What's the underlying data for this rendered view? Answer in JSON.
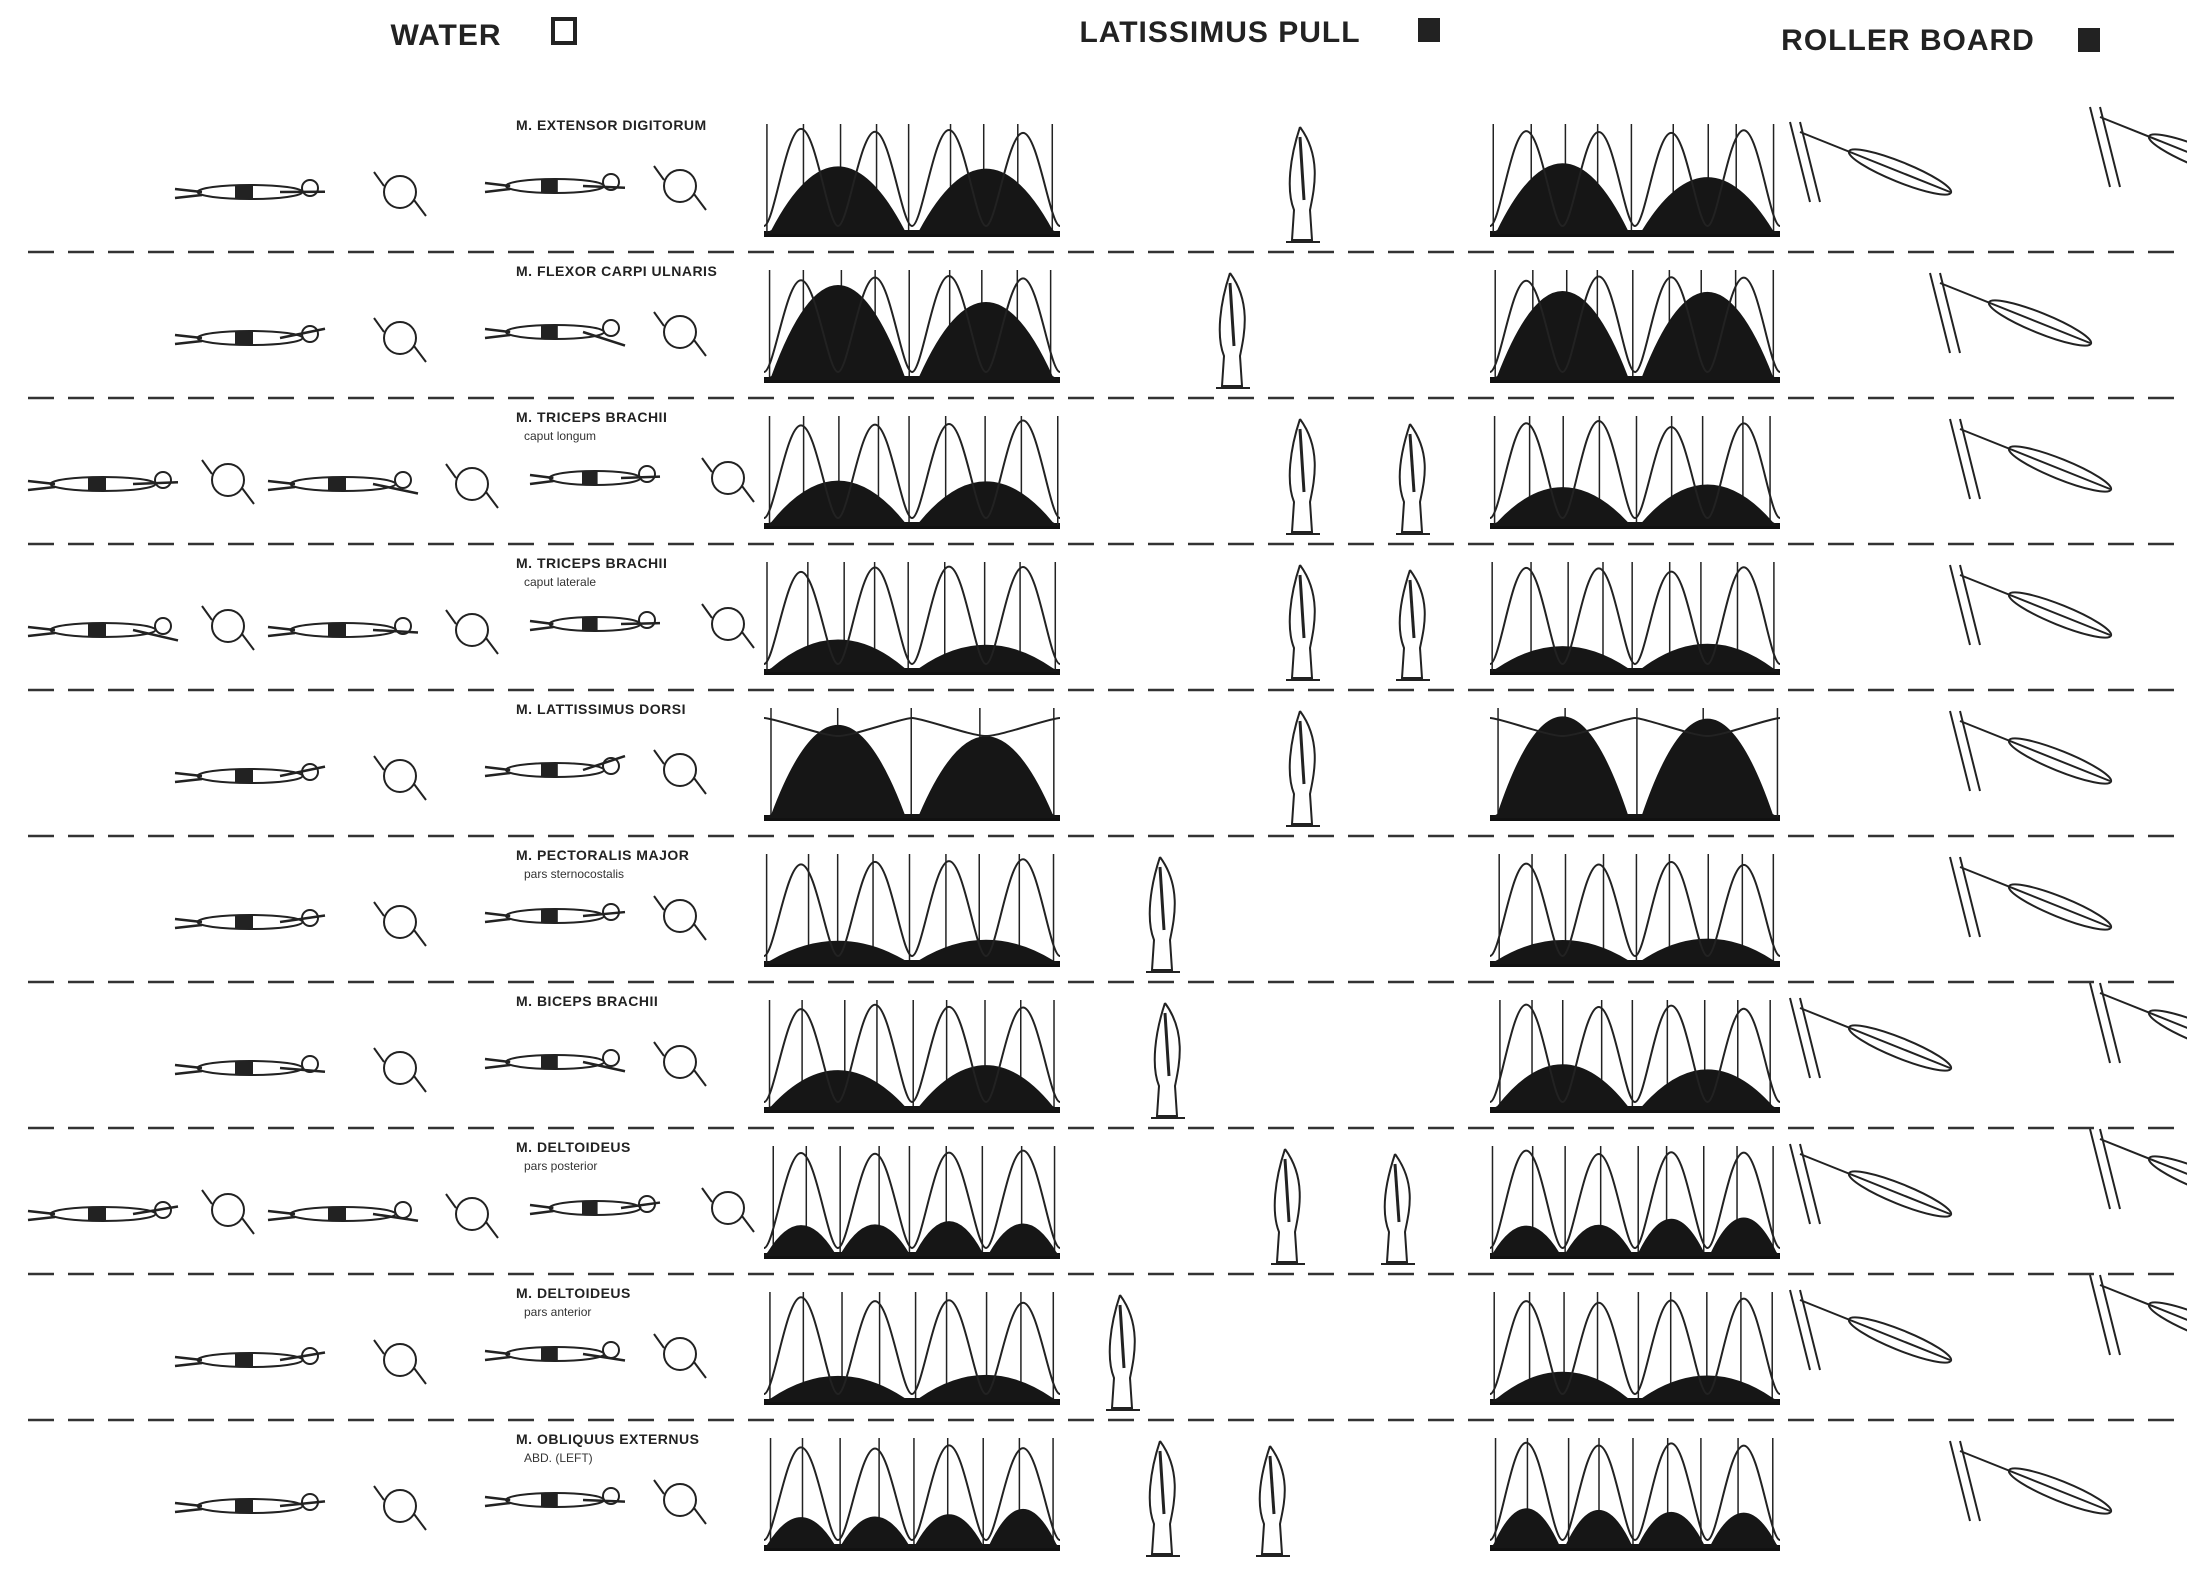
{
  "headers": [
    {
      "label": "WATER"
    },
    {
      "label": "LATISSIMUS PULL"
    },
    {
      "label": "ROLLER BOARD"
    }
  ],
  "rows": [
    {
      "muscle": "M. EXTENSOR DIGITORUM"
    },
    {
      "muscle": "M. FLEXOR CARPI ULNARIS"
    },
    {
      "muscle": "M. TRICEPS BRACHII",
      "part": "caput longum"
    },
    {
      "muscle": "M. TRICEPS BRACHII",
      "part": "caput laterale"
    },
    {
      "muscle": "M. LATTISSIMUS DORSI"
    },
    {
      "muscle": "M. PECTORALIS MAJOR",
      "part": "pars sternocostalis"
    },
    {
      "muscle": "M. BICEPS BRACHII"
    },
    {
      "muscle": "M. DELTOIDEUS",
      "part": "pars posterior"
    },
    {
      "muscle": "M. DELTOIDEUS",
      "part": "pars anterior"
    },
    {
      "muscle": "M. OBLIQUUS EXTERNUS",
      "part": "ABD. (LEFT)"
    }
  ]
}
